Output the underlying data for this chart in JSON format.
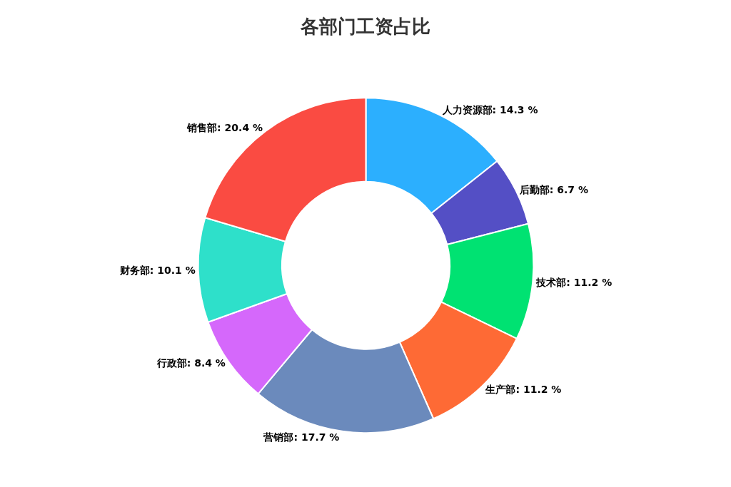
{
  "chart_data": {
    "type": "donut",
    "title": "各部门工资占比",
    "categories": [
      "人力资源部",
      "后勤部",
      "技术部",
      "生产部",
      "营销部",
      "行政部",
      "财务部",
      "销售部"
    ],
    "values": [
      14.3,
      6.7,
      11.2,
      11.2,
      17.7,
      8.4,
      10.1,
      20.4
    ],
    "colors": [
      "#2caffe",
      "#544fc5",
      "#00e272",
      "#fe6a35",
      "#6b8abc",
      "#d568fb",
      "#2ee0ca",
      "#fa4b42"
    ],
    "value_labels": [
      "14.3 %",
      "6.7 %",
      "11.2 %",
      "11.2 %",
      "17.7 %",
      "8.4 %",
      "10.1 %",
      "20.4 %"
    ],
    "legend": false
  }
}
